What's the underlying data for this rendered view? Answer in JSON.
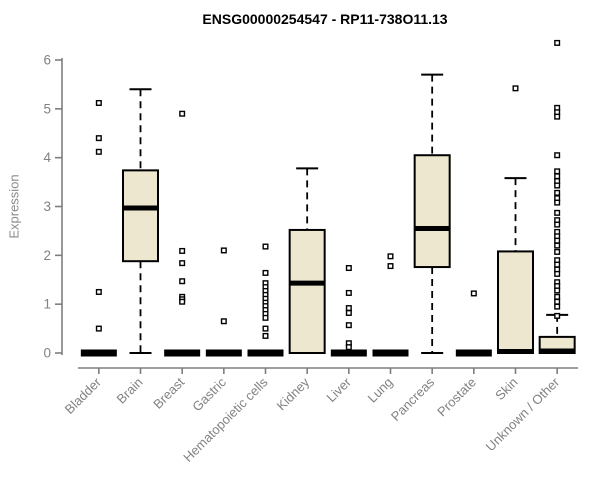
{
  "chart_data": {
    "type": "boxplot",
    "title": "ENSG00000254547 - RP11-738O11.13",
    "ylabel": "Expression",
    "xlabel": "",
    "ylim": [
      0,
      6
    ],
    "yticks": [
      0,
      1,
      2,
      3,
      4,
      5,
      6
    ],
    "grid": false,
    "legend": "none",
    "categories": [
      "Bladder",
      "Brain",
      "Breast",
      "Gastric",
      "Hematopoietic cells",
      "Kidney",
      "Liver",
      "Lung",
      "Pancreas",
      "Prostate",
      "Skin",
      "Unknown / Other"
    ],
    "series": [
      {
        "category": "Bladder",
        "low": 0,
        "q1": 0,
        "median": 0,
        "q3": 0,
        "high": 0,
        "outliers": [
          5.12,
          4.4,
          4.12,
          1.25,
          0.5
        ]
      },
      {
        "category": "Brain",
        "low": 0,
        "q1": 1.88,
        "median": 2.97,
        "q3": 3.74,
        "high": 5.4,
        "outliers": []
      },
      {
        "category": "Breast",
        "low": 0,
        "q1": 0,
        "median": 0,
        "q3": 0,
        "high": 0,
        "outliers": [
          4.9,
          2.09,
          1.84,
          1.47,
          1.15,
          1.1,
          1.05
        ]
      },
      {
        "category": "Gastric",
        "low": 0,
        "q1": 0,
        "median": 0,
        "q3": 0,
        "high": 0,
        "outliers": [
          2.1,
          0.65
        ]
      },
      {
        "category": "Hematopoietic cells",
        "low": 0,
        "q1": 0,
        "median": 0,
        "q3": 0,
        "high": 0,
        "outliers": [
          2.18,
          1.64,
          1.43,
          1.35,
          1.27,
          1.19,
          1.11,
          1.03,
          0.96,
          0.88,
          0.8,
          0.72,
          0.5,
          0.35
        ]
      },
      {
        "category": "Kidney",
        "low": 0,
        "q1": 0,
        "median": 1.43,
        "q3": 2.52,
        "high": 3.78,
        "outliers": []
      },
      {
        "category": "Liver",
        "low": 0,
        "q1": 0,
        "median": 0,
        "q3": 0,
        "high": 0,
        "outliers": [
          1.74,
          1.23,
          0.92,
          0.82,
          0.57,
          0.2,
          0.12
        ]
      },
      {
        "category": "Lung",
        "low": 0,
        "q1": 0,
        "median": 0,
        "q3": 0,
        "high": 0,
        "outliers": [
          1.98,
          1.78
        ]
      },
      {
        "category": "Pancreas",
        "low": 0,
        "q1": 1.76,
        "median": 2.55,
        "q3": 4.05,
        "high": 5.7,
        "outliers": []
      },
      {
        "category": "Prostate",
        "low": 0,
        "q1": 0,
        "median": 0,
        "q3": 0,
        "high": 0,
        "outliers": [
          1.22
        ]
      },
      {
        "category": "Skin",
        "low": 0,
        "q1": 0,
        "median": 0.03,
        "q3": 2.08,
        "high": 3.58,
        "outliers": [
          5.42
        ]
      },
      {
        "category": "Unknown / Other",
        "low": 0,
        "q1": 0,
        "median": 0.04,
        "q3": 0.33,
        "high": 0.78,
        "outliers": [
          6.35,
          5.02,
          4.93,
          4.84,
          4.05,
          3.72,
          3.62,
          3.52,
          3.43,
          3.28,
          3.17,
          3.08,
          2.87,
          2.72,
          2.63,
          2.48,
          2.39,
          2.3,
          2.2,
          2.07,
          1.9,
          1.81,
          1.71,
          1.62,
          1.45,
          1.37,
          1.28,
          1.15,
          1.05,
          0.95,
          0.76
        ]
      }
    ],
    "colors": {
      "box_fill": "#EDE7CF",
      "box_stroke": "#000000",
      "median": "#000000",
      "whisker": "#000000",
      "outlier_stroke": "#000000",
      "outlier_fill": "#ffffff",
      "axis": "#7e7e7e",
      "tick_label": "#828282",
      "title": "#000000"
    }
  }
}
